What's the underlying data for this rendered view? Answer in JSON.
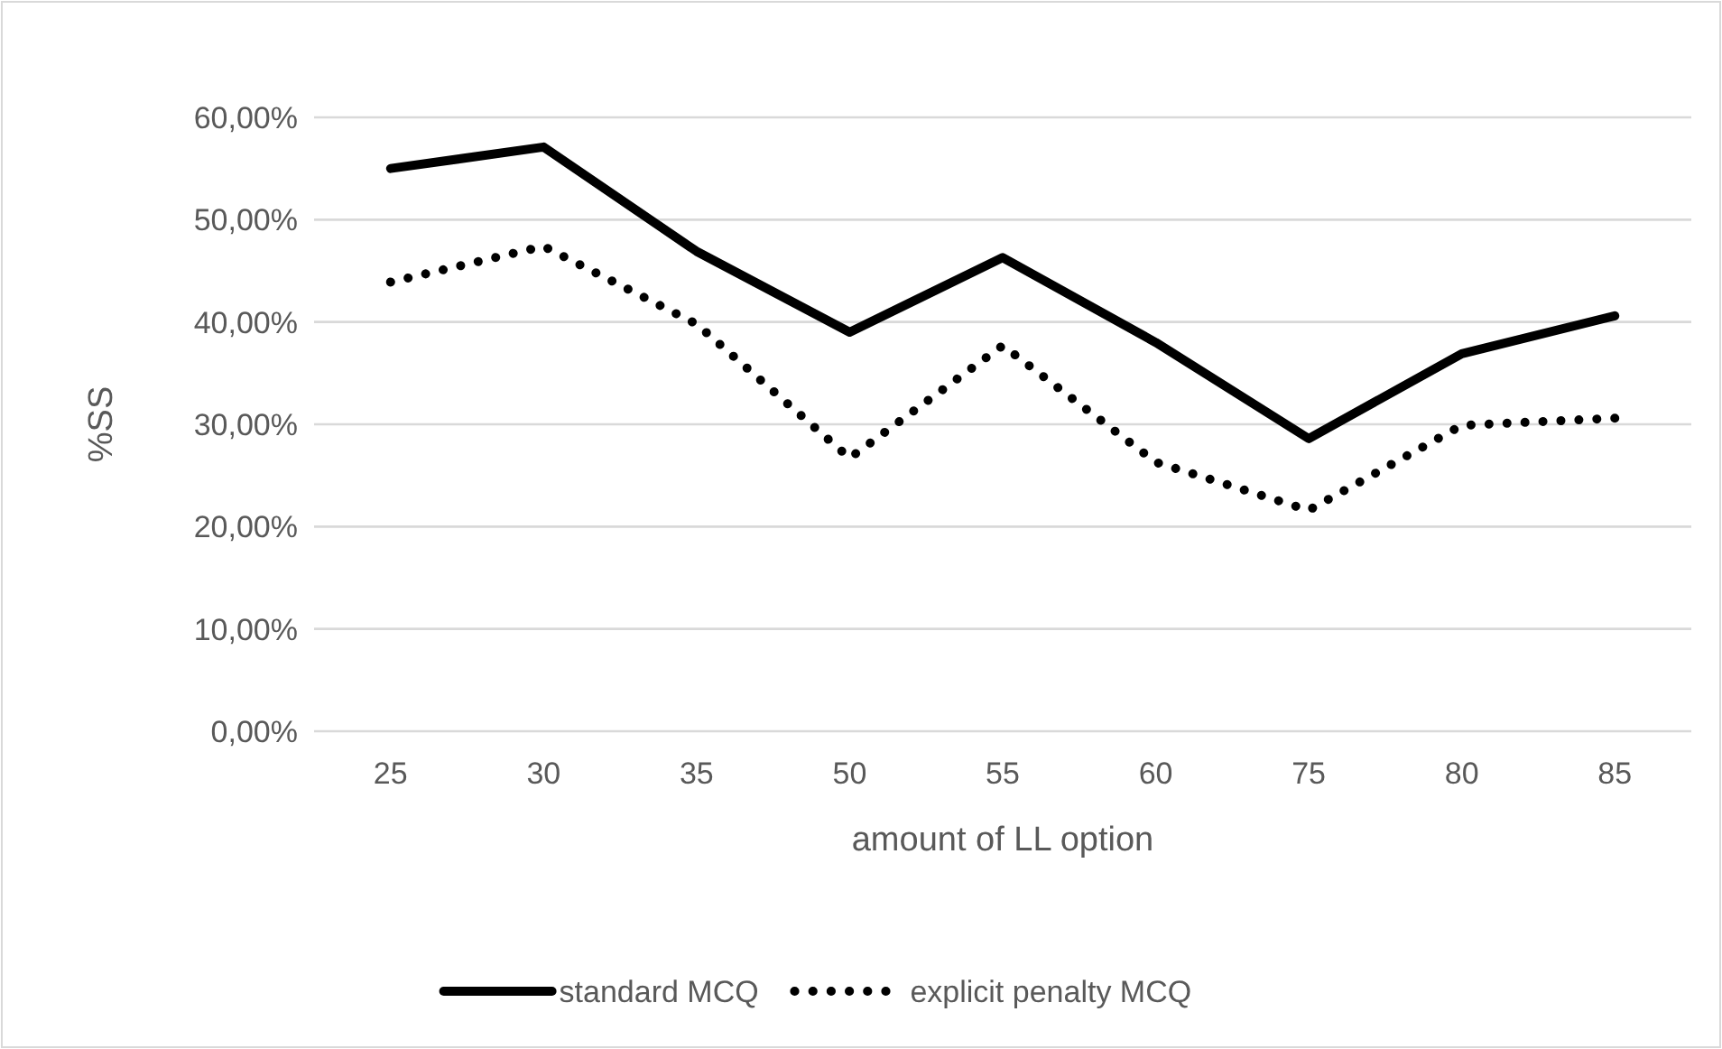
{
  "chart_data": {
    "type": "line",
    "xlabel": "amount of LL option",
    "ylabel": "%SS",
    "categories": [
      "25",
      "30",
      "35",
      "50",
      "55",
      "60",
      "75",
      "80",
      "85"
    ],
    "series": [
      {
        "name": "standard MCQ",
        "color": "#000000",
        "line_style": "solid",
        "values": [
          55.0,
          57.1,
          46.9,
          39.0,
          46.3,
          38.0,
          28.6,
          36.9,
          40.6
        ]
      },
      {
        "name": "explicit penalty MCQ",
        "color": "#000000",
        "line_style": "dotted",
        "values": [
          43.9,
          47.4,
          39.8,
          26.7,
          37.7,
          26.3,
          21.6,
          29.9,
          30.6
        ]
      }
    ],
    "ylim": [
      0,
      60
    ],
    "yticks": [
      {
        "value": 0,
        "label": "0,00%"
      },
      {
        "value": 10,
        "label": "10,00%"
      },
      {
        "value": 20,
        "label": "20,00%"
      },
      {
        "value": 30,
        "label": "30,00%"
      },
      {
        "value": 40,
        "label": "40,00%"
      },
      {
        "value": 50,
        "label": "50,00%"
      },
      {
        "value": 60,
        "label": "60,00%"
      }
    ],
    "grid": "y",
    "legend": "bottom",
    "marker": "none"
  }
}
